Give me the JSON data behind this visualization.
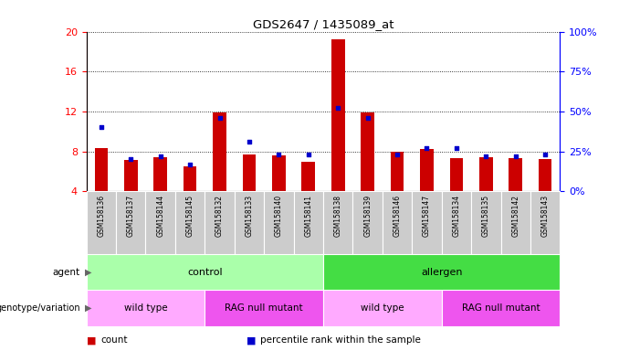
{
  "title": "GDS2647 / 1435089_at",
  "samples": [
    "GSM158136",
    "GSM158137",
    "GSM158144",
    "GSM158145",
    "GSM158132",
    "GSM158133",
    "GSM158140",
    "GSM158141",
    "GSM158138",
    "GSM158139",
    "GSM158146",
    "GSM158147",
    "GSM158134",
    "GSM158135",
    "GSM158142",
    "GSM158143"
  ],
  "counts": [
    8.3,
    7.1,
    7.4,
    6.5,
    11.9,
    7.7,
    7.6,
    7.0,
    19.2,
    11.9,
    8.0,
    8.2,
    7.3,
    7.4,
    7.3,
    7.2
  ],
  "percentile_ranks": [
    40,
    20,
    22,
    17,
    46,
    31,
    23,
    23,
    52,
    46,
    23,
    27,
    27,
    22,
    22,
    23
  ],
  "ylim_left": [
    4,
    20
  ],
  "ylim_right": [
    0,
    100
  ],
  "yticks_left": [
    4,
    8,
    12,
    16,
    20
  ],
  "yticks_right": [
    0,
    25,
    50,
    75,
    100
  ],
  "bar_color": "#cc0000",
  "dot_color": "#0000cc",
  "agent_groups": [
    {
      "label": "control",
      "start": 0,
      "end": 8,
      "color": "#aaffaa"
    },
    {
      "label": "allergen",
      "start": 8,
      "end": 16,
      "color": "#44dd44"
    }
  ],
  "genotype_groups": [
    {
      "label": "wild type",
      "start": 0,
      "end": 4,
      "color": "#ffaaff"
    },
    {
      "label": "RAG null mutant",
      "start": 4,
      "end": 8,
      "color": "#ee55ee"
    },
    {
      "label": "wild type",
      "start": 8,
      "end": 12,
      "color": "#ffaaff"
    },
    {
      "label": "RAG null mutant",
      "start": 12,
      "end": 16,
      "color": "#ee55ee"
    }
  ],
  "legend_items": [
    {
      "label": "count",
      "color": "#cc0000"
    },
    {
      "label": "percentile rank within the sample",
      "color": "#0000cc"
    }
  ],
  "sample_box_color": "#cccccc",
  "background_color": "#ffffff",
  "chart_bg": "#ffffff",
  "arrow_color": "#666666"
}
